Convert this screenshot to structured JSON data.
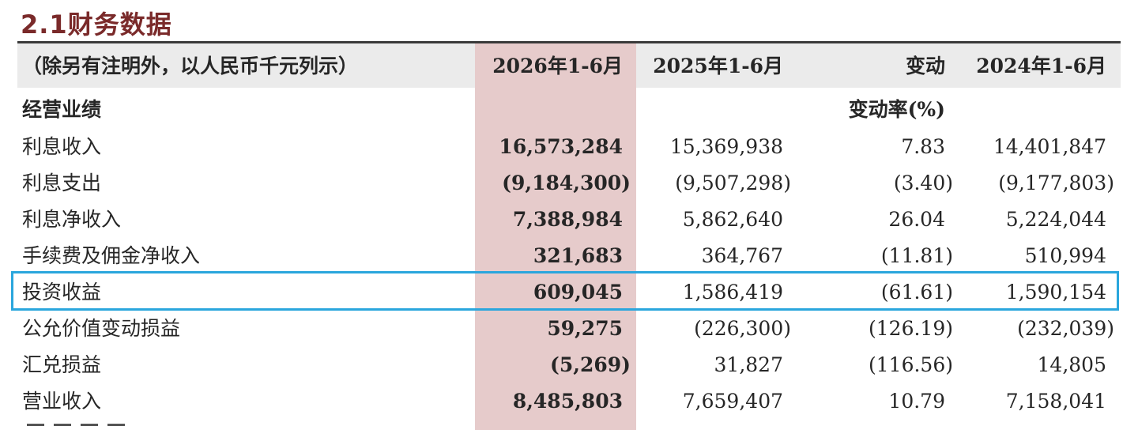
{
  "title": "2.1财务数据",
  "header": {
    "note": "（除另有注明外，以人民币千元列示）",
    "col1": "2026年1-6月",
    "col2": "2025年1-6月",
    "col3": "变动",
    "col4": "2024年1-6月"
  },
  "section": {
    "label": "经营业绩",
    "change_rate_label": "变动率(%)"
  },
  "rows": [
    {
      "label": "利息收入",
      "v2026": "16,573,284",
      "v2025": "15,369,938",
      "change": "7.83",
      "v2024": "14,401,847"
    },
    {
      "label": "利息支出",
      "v2026": "(9,184,300)",
      "v2025": "(9,507,298)",
      "change": "(3.40)",
      "v2024": "(9,177,803)"
    },
    {
      "label": "利息净收入",
      "v2026": "7,388,984",
      "v2025": "5,862,640",
      "change": "26.04",
      "v2024": "5,224,044"
    },
    {
      "label": "手续费及佣金净收入",
      "v2026": "321,683",
      "v2025": "364,767",
      "change": "(11.81)",
      "v2024": "510,994"
    },
    {
      "label": "投资收益",
      "v2026": "609,045",
      "v2025": "1,586,419",
      "change": "(61.61)",
      "v2024": "1,590,154"
    },
    {
      "label": "公允价值变动损益",
      "v2026": "59,275",
      "v2025": "(226,300)",
      "change": "(126.19)",
      "v2024": "(232,039)"
    },
    {
      "label": "汇兑损益",
      "v2026": "(5,269)",
      "v2025": "31,827",
      "change": "(116.56)",
      "v2024": "14,805"
    },
    {
      "label": "营业收入",
      "v2026": "8,485,803",
      "v2025": "7,659,407",
      "change": "10.79",
      "v2024": "7,158,041"
    }
  ],
  "colors": {
    "title": "#7a2a2a",
    "highlight_column": "#e6cbcb",
    "header_background": "#ebebeb",
    "selection_outline": "#2aa6dd"
  }
}
